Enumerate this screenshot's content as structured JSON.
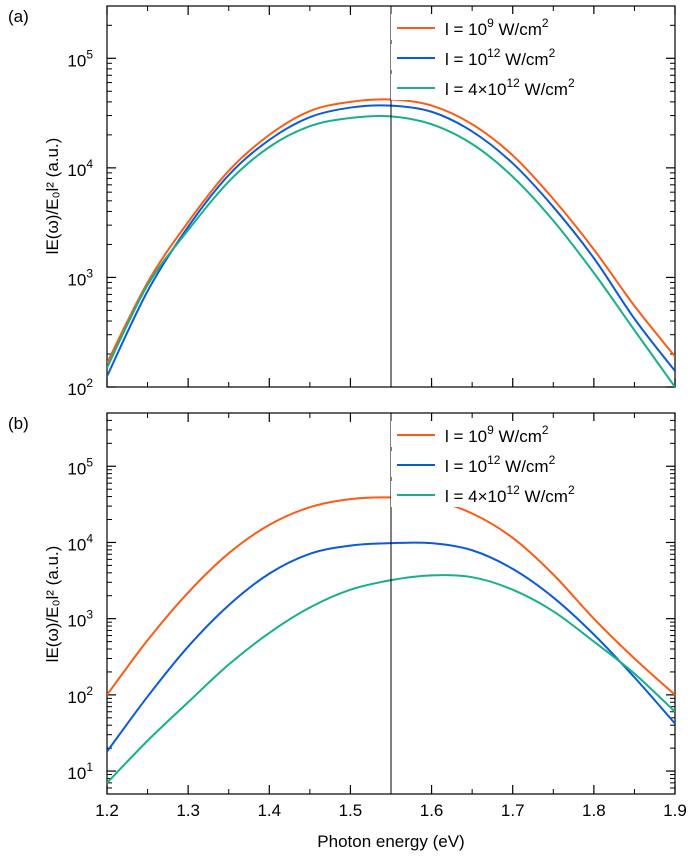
{
  "colors": {
    "series": [
      "#ff5a14",
      "#0b5bd6",
      "#16b08a"
    ],
    "frame": "#000000",
    "marker_line": "#000000",
    "background": "#ffffff"
  },
  "chart_data": [
    {
      "type": "line",
      "panel_label": "(a)",
      "xlabel": "",
      "ylabel": "lE(ω)/E₀l² (a.u.)",
      "xlim": [
        1.2,
        1.9
      ],
      "ylim": [
        100,
        300000
      ],
      "yscale": "log",
      "grid": false,
      "legend_position": "top-right",
      "vertical_line_x": 1.55,
      "x_ticks": [
        1.2,
        1.3,
        1.4,
        1.5,
        1.6,
        1.7,
        1.8,
        1.9
      ],
      "y_ticks": [
        100,
        1000,
        10000,
        100000
      ],
      "y_tick_labels": [
        {
          "base": "10",
          "exp": "2"
        },
        {
          "base": "10",
          "exp": "3"
        },
        {
          "base": "10",
          "exp": "4"
        },
        {
          "base": "10",
          "exp": "5"
        }
      ],
      "x": [
        1.2,
        1.25,
        1.3,
        1.35,
        1.4,
        1.45,
        1.5,
        1.55,
        1.6,
        1.65,
        1.7,
        1.75,
        1.8,
        1.85,
        1.9
      ],
      "series": [
        {
          "name": "l = 10⁹ W/cm²",
          "name_parts": [
            "l = 10",
            "9",
            " W/cm",
            "2"
          ],
          "values": [
            165,
            900,
            3200,
            9400,
            20000,
            33000,
            40000,
            42000,
            37000,
            25000,
            13000,
            5200,
            1800,
            550,
            190
          ]
        },
        {
          "name": "l = 10¹² W/cm²",
          "name_parts": [
            "l = 10",
            "12",
            " W/cm",
            "2"
          ],
          "values": [
            125,
            750,
            2900,
            8600,
            18000,
            29000,
            35500,
            37000,
            32500,
            21500,
            11000,
            4400,
            1500,
            420,
            140
          ]
        },
        {
          "name": "l = 4×10¹² W/cm²",
          "name_parts": [
            "l = 4×10",
            "12",
            " W/cm",
            "2"
          ],
          "values": [
            150,
            850,
            2700,
            7500,
            15500,
            24000,
            28500,
            29500,
            25000,
            16500,
            8300,
            3300,
            1100,
            330,
            100
          ]
        }
      ]
    },
    {
      "type": "line",
      "panel_label": "(b)",
      "xlabel": "Photon energy (eV)",
      "ylabel": "lE(ω)/E₀l² (a.u.)",
      "xlim": [
        1.2,
        1.9
      ],
      "ylim": [
        5,
        500000
      ],
      "yscale": "log",
      "grid": false,
      "legend_position": "top-right",
      "vertical_line_x": 1.55,
      "x_ticks": [
        1.2,
        1.3,
        1.4,
        1.5,
        1.6,
        1.7,
        1.8,
        1.9
      ],
      "x_tick_labels": [
        "1.2",
        "1.3",
        "1.4",
        "1.5",
        "1.6",
        "1.7",
        "1.8",
        "1.9"
      ],
      "y_ticks": [
        10,
        100,
        1000,
        10000,
        100000
      ],
      "y_tick_labels": [
        {
          "base": "10",
          "exp": "1"
        },
        {
          "base": "10",
          "exp": "2"
        },
        {
          "base": "10",
          "exp": "3"
        },
        {
          "base": "10",
          "exp": "4"
        },
        {
          "base": "10",
          "exp": "5"
        }
      ],
      "x": [
        1.2,
        1.25,
        1.3,
        1.35,
        1.4,
        1.45,
        1.5,
        1.55,
        1.6,
        1.65,
        1.7,
        1.75,
        1.8,
        1.85,
        1.9
      ],
      "series": [
        {
          "name": "l = 10⁹ W/cm²",
          "name_parts": [
            "l = 10",
            "9",
            " W/cm",
            "2"
          ],
          "values": [
            100,
            520,
            2200,
            7200,
            17000,
            29000,
            37000,
            39000,
            36000,
            24000,
            11500,
            3800,
            1000,
            300,
            100
          ]
        },
        {
          "name": "l = 10¹² W/cm²",
          "name_parts": [
            "l = 10",
            "12",
            " W/cm",
            "2"
          ],
          "values": [
            18,
            95,
            430,
            1500,
            3900,
            7100,
            9100,
            9800,
            9800,
            7900,
            4500,
            1900,
            620,
            170,
            42
          ]
        },
        {
          "name": "l = 4×10¹² W/cm²",
          "name_parts": [
            "l = 4×10",
            "12",
            " W/cm",
            "2"
          ],
          "values": [
            7,
            25,
            80,
            250,
            650,
            1400,
            2400,
            3200,
            3700,
            3500,
            2400,
            1250,
            500,
            190,
            60
          ]
        }
      ]
    }
  ]
}
